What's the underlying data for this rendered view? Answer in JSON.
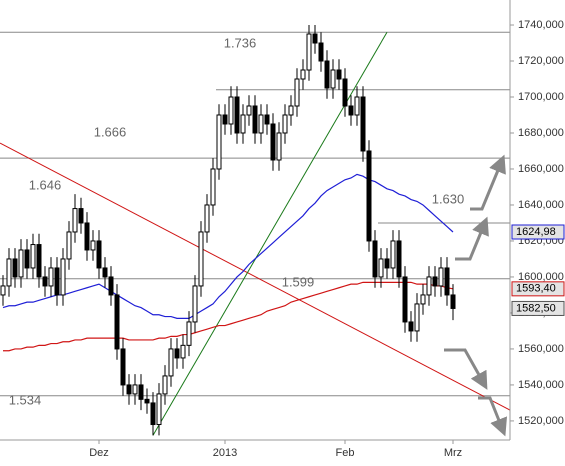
{
  "chart_data": {
    "type": "candlestick",
    "categories": [
      null,
      null,
      null,
      null,
      null,
      null,
      null,
      null,
      null,
      null,
      null,
      null,
      null,
      null,
      null,
      null,
      "Dez",
      null,
      null,
      null,
      null,
      null,
      null,
      null,
      null,
      null,
      null,
      null,
      null,
      null,
      null,
      null,
      null,
      null,
      null,
      null,
      null,
      "2013",
      null,
      null,
      null,
      null,
      null,
      null,
      null,
      null,
      null,
      null,
      null,
      null,
      null,
      null,
      null,
      null,
      null,
      null,
      null,
      "Feb",
      null,
      null,
      null,
      null,
      null,
      null,
      null,
      null,
      null,
      null,
      null,
      null,
      null,
      null,
      null,
      null,
      null,
      "Mrz"
    ],
    "open": [
      1590,
      1595,
      1610,
      1600,
      1615,
      1605,
      1618,
      1600,
      1595,
      1605,
      1590,
      1610,
      1625,
      1638,
      1630,
      1615,
      1620,
      1605,
      1600,
      1590,
      1560,
      1540,
      1535,
      1540,
      1532,
      1530,
      1518,
      1535,
      1545,
      1560,
      1555,
      1562,
      1575,
      1595,
      1625,
      1640,
      1660,
      1690,
      1685,
      1700,
      1680,
      1690,
      1695,
      1680,
      1690,
      1685,
      1665,
      1680,
      1690,
      1695,
      1710,
      1715,
      1735,
      1730,
      1720,
      1705,
      1715,
      1710,
      1695,
      1690,
      1700,
      1670,
      1620,
      1600,
      1610,
      1605,
      1620,
      1600,
      1575,
      1570,
      1585,
      1590,
      1600,
      1595,
      1605,
      1590
    ],
    "high": [
      1601,
      1616,
      1616,
      1621,
      1621,
      1624,
      1624,
      1606,
      1611,
      1611,
      1616,
      1631,
      1646,
      1644,
      1636,
      1626,
      1626,
      1611,
      1606,
      1596,
      1566,
      1546,
      1546,
      1546,
      1538,
      1536,
      1541,
      1551,
      1566,
      1566,
      1568,
      1581,
      1601,
      1631,
      1646,
      1666,
      1696,
      1696,
      1706,
      1706,
      1696,
      1701,
      1701,
      1696,
      1696,
      1691,
      1686,
      1696,
      1701,
      1716,
      1721,
      1740,
      1740,
      1736,
      1726,
      1721,
      1721,
      1716,
      1701,
      1706,
      1706,
      1676,
      1626,
      1616,
      1616,
      1626,
      1626,
      1606,
      1581,
      1591,
      1596,
      1606,
      1606,
      1611,
      1611,
      1596
    ],
    "low": [
      1584,
      1589,
      1594,
      1594,
      1599,
      1599,
      1594,
      1589,
      1589,
      1584,
      1584,
      1604,
      1619,
      1624,
      1609,
      1609,
      1599,
      1594,
      1584,
      1554,
      1534,
      1529,
      1529,
      1526,
      1524,
      1512,
      1512,
      1529,
      1539,
      1549,
      1549,
      1556,
      1569,
      1589,
      1619,
      1634,
      1654,
      1679,
      1679,
      1674,
      1674,
      1684,
      1674,
      1674,
      1679,
      1659,
      1659,
      1674,
      1684,
      1689,
      1704,
      1709,
      1724,
      1714,
      1699,
      1699,
      1704,
      1689,
      1684,
      1684,
      1664,
      1614,
      1594,
      1594,
      1599,
      1599,
      1594,
      1569,
      1564,
      1564,
      1579,
      1584,
      1589,
      1589,
      1584,
      1576
    ],
    "close": [
      1595,
      1610,
      1600,
      1615,
      1605,
      1618,
      1600,
      1595,
      1605,
      1590,
      1610,
      1625,
      1638,
      1630,
      1615,
      1620,
      1605,
      1600,
      1590,
      1560,
      1540,
      1535,
      1540,
      1532,
      1530,
      1518,
      1535,
      1545,
      1560,
      1555,
      1562,
      1575,
      1595,
      1625,
      1640,
      1660,
      1690,
      1685,
      1700,
      1680,
      1690,
      1695,
      1680,
      1690,
      1685,
      1665,
      1680,
      1690,
      1695,
      1710,
      1715,
      1735,
      1730,
      1720,
      1705,
      1715,
      1710,
      1695,
      1690,
      1700,
      1670,
      1620,
      1600,
      1610,
      1605,
      1620,
      1600,
      1575,
      1570,
      1585,
      1590,
      1600,
      1595,
      1605,
      1590,
      1582.5
    ],
    "close_label": "1582,50",
    "up_color": "#ffffff",
    "down_color": "#000000",
    "series": [
      {
        "color": "#1f1fd6",
        "last_label": "1624,98",
        "values": [
          1583,
          1584,
          1584,
          1585,
          1586,
          1586,
          1587,
          1588,
          1589,
          1590,
          1590,
          1591,
          1592,
          1593,
          1594,
          1595,
          1596,
          1594,
          1592,
          1590,
          1588,
          1586,
          1584,
          1583,
          1581,
          1579,
          1579,
          1578,
          1578,
          1577,
          1577,
          1577,
          1579,
          1581,
          1583,
          1585,
          1589,
          1592,
          1596,
          1600,
          1603,
          1607,
          1610,
          1613,
          1616,
          1619,
          1622,
          1625,
          1628,
          1631,
          1634,
          1638,
          1641,
          1645,
          1648,
          1650,
          1652,
          1654,
          1655,
          1657,
          1656,
          1654,
          1653,
          1651,
          1649,
          1648,
          1646,
          1645,
          1643,
          1642,
          1640,
          1637,
          1634,
          1631,
          1628,
          1624.98
        ]
      },
      {
        "color": "#d01515",
        "last_label": "1593,40",
        "values": [
          1559,
          1559,
          1560,
          1560,
          1561,
          1561,
          1562,
          1562,
          1563,
          1563,
          1564,
          1564,
          1565,
          1565,
          1566,
          1566,
          1566,
          1566,
          1566,
          1566,
          1566,
          1565,
          1565,
          1565,
          1565,
          1565,
          1566,
          1566,
          1567,
          1567,
          1568,
          1568,
          1569,
          1570,
          1571,
          1572,
          1573,
          1573,
          1574,
          1575,
          1576,
          1577,
          1578,
          1579,
          1581,
          1582,
          1583,
          1584,
          1586,
          1587,
          1588,
          1589,
          1590,
          1591,
          1592,
          1593,
          1594,
          1595,
          1596,
          1596,
          1597,
          1597,
          1597,
          1597,
          1597,
          1597,
          1597,
          1597,
          1597,
          1596,
          1596,
          1596,
          1595,
          1595,
          1594,
          1593.4
        ]
      }
    ],
    "trendlines": [
      {
        "color": "#d01515",
        "x": [
          -0.5,
          84.5
        ],
        "y": [
          1674.4,
          1526
        ]
      },
      {
        "color": "#1a7a1a",
        "x": [
          25,
          64
        ],
        "y": [
          1512,
          1736
        ]
      }
    ],
    "levels": [
      {
        "value": 1736,
        "label": "1.736",
        "start": 0
      },
      {
        "value": 1704,
        "start": 36
      },
      {
        "value": 1666,
        "label": "1.666",
        "start": 0
      },
      {
        "value": 1646,
        "label": "1.646",
        "line": false
      },
      {
        "value": 1630,
        "label": "1.630",
        "start": 63
      },
      {
        "value": 1599,
        "label": "1.599",
        "start": 0
      },
      {
        "value": 1534,
        "label": "1.534",
        "start": 0
      }
    ],
    "ylim": [
      1509.4,
      1753.9
    ],
    "yticks": [
      {
        "value": 1520,
        "label": "1520,000"
      },
      {
        "value": 1540,
        "label": "1540,000"
      },
      {
        "value": 1560,
        "label": "1560,000"
      },
      {
        "value": 1580,
        "label": "1580,000"
      },
      {
        "value": 1600,
        "label": "1600,000"
      },
      {
        "value": 1620,
        "label": "1620,000"
      },
      {
        "value": 1640,
        "label": "1640,000"
      },
      {
        "value": 1660,
        "label": "1660,000"
      },
      {
        "value": 1680,
        "label": "1680,000"
      },
      {
        "value": 1700,
        "label": "1700,000"
      },
      {
        "value": 1720,
        "label": "1720,000"
      },
      {
        "value": 1740,
        "label": "1740,000"
      }
    ]
  }
}
